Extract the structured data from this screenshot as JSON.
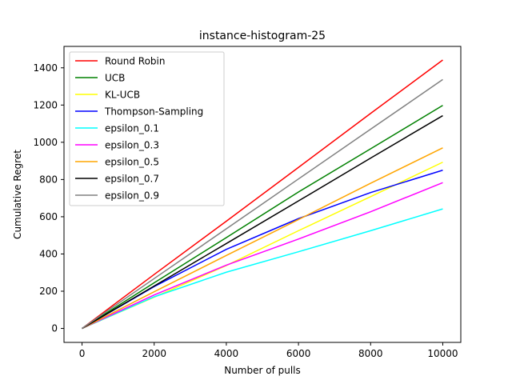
{
  "chart_data": {
    "type": "line",
    "title": "instance-histogram-25",
    "xlabel": "Number of pulls",
    "ylabel": "Cumulative Regret",
    "xlim": [
      -500,
      10500
    ],
    "ylim": [
      -75,
      1515
    ],
    "xticks": [
      0,
      2000,
      4000,
      6000,
      8000,
      10000
    ],
    "yticks": [
      0,
      200,
      400,
      600,
      800,
      1000,
      1200,
      1400
    ],
    "grid": false,
    "legend": "top-left",
    "series": [
      {
        "name": "Round Robin",
        "color": "#ff0000",
        "points": [
          [
            0,
            0
          ],
          [
            2000,
            290
          ],
          [
            4000,
            576
          ],
          [
            6000,
            865
          ],
          [
            8000,
            1155
          ],
          [
            10000,
            1442
          ]
        ]
      },
      {
        "name": "UCB",
        "color": "#008000",
        "points": [
          [
            0,
            0
          ],
          [
            2000,
            245
          ],
          [
            4000,
            488
          ],
          [
            6000,
            733
          ],
          [
            8000,
            965
          ],
          [
            10000,
            1198
          ]
        ]
      },
      {
        "name": "KL-UCB",
        "color": "#ffff00",
        "points": [
          [
            0,
            0
          ],
          [
            2000,
            168
          ],
          [
            4000,
            338
          ],
          [
            6000,
            525
          ],
          [
            8000,
            708
          ],
          [
            10000,
            893
          ]
        ]
      },
      {
        "name": "Thompson-Sampling",
        "color": "#0000ff",
        "points": [
          [
            0,
            0
          ],
          [
            2000,
            225
          ],
          [
            4000,
            425
          ],
          [
            6000,
            590
          ],
          [
            8000,
            730
          ],
          [
            10000,
            850
          ]
        ]
      },
      {
        "name": "epsilon_0.1",
        "color": "#00ffff",
        "points": [
          [
            0,
            0
          ],
          [
            2000,
            170
          ],
          [
            4000,
            302
          ],
          [
            6000,
            412
          ],
          [
            8000,
            525
          ],
          [
            10000,
            642
          ]
        ]
      },
      {
        "name": "epsilon_0.3",
        "color": "#ff00ff",
        "points": [
          [
            0,
            0
          ],
          [
            2000,
            180
          ],
          [
            4000,
            340
          ],
          [
            6000,
            480
          ],
          [
            8000,
            627
          ],
          [
            10000,
            783
          ]
        ]
      },
      {
        "name": "epsilon_0.5",
        "color": "#ffa500",
        "points": [
          [
            0,
            0
          ],
          [
            2000,
            197
          ],
          [
            4000,
            392
          ],
          [
            6000,
            585
          ],
          [
            8000,
            780
          ],
          [
            10000,
            970
          ]
        ]
      },
      {
        "name": "epsilon_0.7",
        "color": "#000000",
        "points": [
          [
            0,
            0
          ],
          [
            2000,
            228
          ],
          [
            4000,
            456
          ],
          [
            6000,
            685
          ],
          [
            8000,
            915
          ],
          [
            10000,
            1143
          ]
        ]
      },
      {
        "name": "epsilon_0.9",
        "color": "#808080",
        "points": [
          [
            0,
            0
          ],
          [
            2000,
            268
          ],
          [
            4000,
            535
          ],
          [
            6000,
            803
          ],
          [
            8000,
            1070
          ],
          [
            10000,
            1337
          ]
        ]
      }
    ]
  }
}
